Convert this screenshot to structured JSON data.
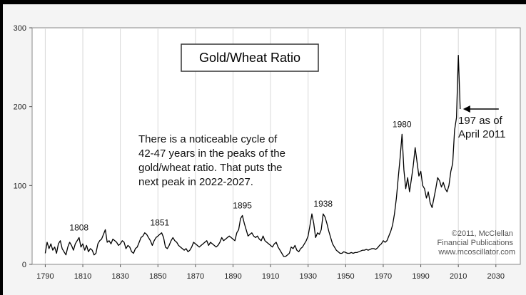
{
  "chart_data": {
    "type": "line",
    "title": "Gold/Wheat Ratio",
    "xlim": [
      1783,
      2043
    ],
    "ylim": [
      0,
      300
    ],
    "x_ticks": [
      1790,
      1810,
      1830,
      1850,
      1870,
      1890,
      1910,
      1930,
      1950,
      1970,
      1990,
      2010,
      2030
    ],
    "y_ticks": [
      0,
      100,
      200,
      300
    ],
    "grid": "vertical",
    "series": [
      {
        "color": "#000000",
        "points": [
          [
            1790,
            14
          ],
          [
            1791,
            28
          ],
          [
            1792,
            20
          ],
          [
            1793,
            26
          ],
          [
            1794,
            18
          ],
          [
            1795,
            22
          ],
          [
            1796,
            14
          ],
          [
            1797,
            26
          ],
          [
            1798,
            30
          ],
          [
            1799,
            20
          ],
          [
            1800,
            16
          ],
          [
            1801,
            12
          ],
          [
            1802,
            22
          ],
          [
            1803,
            28
          ],
          [
            1804,
            24
          ],
          [
            1805,
            18
          ],
          [
            1806,
            26
          ],
          [
            1807,
            30
          ],
          [
            1808,
            34
          ],
          [
            1809,
            22
          ],
          [
            1810,
            26
          ],
          [
            1811,
            18
          ],
          [
            1812,
            24
          ],
          [
            1813,
            16
          ],
          [
            1814,
            20
          ],
          [
            1815,
            18
          ],
          [
            1816,
            12
          ],
          [
            1817,
            14
          ],
          [
            1818,
            26
          ],
          [
            1819,
            30
          ],
          [
            1820,
            32
          ],
          [
            1821,
            38
          ],
          [
            1822,
            44
          ],
          [
            1823,
            28
          ],
          [
            1824,
            30
          ],
          [
            1825,
            26
          ],
          [
            1826,
            32
          ],
          [
            1827,
            30
          ],
          [
            1828,
            28
          ],
          [
            1829,
            24
          ],
          [
            1830,
            26
          ],
          [
            1831,
            30
          ],
          [
            1832,
            28
          ],
          [
            1833,
            20
          ],
          [
            1834,
            24
          ],
          [
            1835,
            22
          ],
          [
            1836,
            16
          ],
          [
            1837,
            14
          ],
          [
            1838,
            20
          ],
          [
            1839,
            22
          ],
          [
            1840,
            28
          ],
          [
            1841,
            34
          ],
          [
            1842,
            36
          ],
          [
            1843,
            40
          ],
          [
            1844,
            38
          ],
          [
            1845,
            34
          ],
          [
            1846,
            30
          ],
          [
            1847,
            24
          ],
          [
            1848,
            30
          ],
          [
            1849,
            34
          ],
          [
            1850,
            36
          ],
          [
            1851,
            38
          ],
          [
            1852,
            40
          ],
          [
            1853,
            34
          ],
          [
            1854,
            22
          ],
          [
            1855,
            20
          ],
          [
            1856,
            24
          ],
          [
            1857,
            30
          ],
          [
            1858,
            34
          ],
          [
            1859,
            30
          ],
          [
            1860,
            28
          ],
          [
            1861,
            24
          ],
          [
            1862,
            22
          ],
          [
            1863,
            20
          ],
          [
            1864,
            18
          ],
          [
            1865,
            20
          ],
          [
            1866,
            16
          ],
          [
            1867,
            18
          ],
          [
            1868,
            22
          ],
          [
            1869,
            28
          ],
          [
            1870,
            26
          ],
          [
            1871,
            24
          ],
          [
            1872,
            22
          ],
          [
            1873,
            24
          ],
          [
            1874,
            26
          ],
          [
            1875,
            28
          ],
          [
            1876,
            30
          ],
          [
            1877,
            24
          ],
          [
            1878,
            28
          ],
          [
            1879,
            26
          ],
          [
            1880,
            24
          ],
          [
            1881,
            22
          ],
          [
            1882,
            24
          ],
          [
            1883,
            28
          ],
          [
            1884,
            34
          ],
          [
            1885,
            30
          ],
          [
            1886,
            32
          ],
          [
            1887,
            34
          ],
          [
            1888,
            36
          ],
          [
            1889,
            34
          ],
          [
            1890,
            32
          ],
          [
            1891,
            30
          ],
          [
            1892,
            40
          ],
          [
            1893,
            44
          ],
          [
            1894,
            58
          ],
          [
            1895,
            62
          ],
          [
            1896,
            52
          ],
          [
            1897,
            44
          ],
          [
            1898,
            36
          ],
          [
            1899,
            38
          ],
          [
            1900,
            40
          ],
          [
            1901,
            36
          ],
          [
            1902,
            34
          ],
          [
            1903,
            36
          ],
          [
            1904,
            32
          ],
          [
            1905,
            30
          ],
          [
            1906,
            36
          ],
          [
            1907,
            30
          ],
          [
            1908,
            28
          ],
          [
            1909,
            26
          ],
          [
            1910,
            24
          ],
          [
            1911,
            22
          ],
          [
            1912,
            26
          ],
          [
            1913,
            28
          ],
          [
            1914,
            22
          ],
          [
            1915,
            18
          ],
          [
            1916,
            14
          ],
          [
            1917,
            10
          ],
          [
            1918,
            10
          ],
          [
            1919,
            12
          ],
          [
            1920,
            14
          ],
          [
            1921,
            22
          ],
          [
            1922,
            20
          ],
          [
            1923,
            24
          ],
          [
            1924,
            18
          ],
          [
            1925,
            16
          ],
          [
            1926,
            20
          ],
          [
            1927,
            22
          ],
          [
            1928,
            26
          ],
          [
            1929,
            30
          ],
          [
            1930,
            36
          ],
          [
            1931,
            50
          ],
          [
            1932,
            64
          ],
          [
            1933,
            52
          ],
          [
            1934,
            34
          ],
          [
            1935,
            40
          ],
          [
            1936,
            38
          ],
          [
            1937,
            44
          ],
          [
            1938,
            64
          ],
          [
            1939,
            60
          ],
          [
            1940,
            52
          ],
          [
            1941,
            42
          ],
          [
            1942,
            34
          ],
          [
            1943,
            26
          ],
          [
            1944,
            22
          ],
          [
            1945,
            18
          ],
          [
            1946,
            16
          ],
          [
            1947,
            14
          ],
          [
            1948,
            14
          ],
          [
            1949,
            16
          ],
          [
            1950,
            15
          ],
          [
            1951,
            14
          ],
          [
            1952,
            14
          ],
          [
            1953,
            15
          ],
          [
            1954,
            14
          ],
          [
            1955,
            15
          ],
          [
            1956,
            15
          ],
          [
            1957,
            16
          ],
          [
            1958,
            17
          ],
          [
            1959,
            18
          ],
          [
            1960,
            18
          ],
          [
            1961,
            19
          ],
          [
            1962,
            18
          ],
          [
            1963,
            19
          ],
          [
            1964,
            20
          ],
          [
            1965,
            20
          ],
          [
            1966,
            19
          ],
          [
            1967,
            21
          ],
          [
            1968,
            24
          ],
          [
            1969,
            26
          ],
          [
            1970,
            30
          ],
          [
            1971,
            28
          ],
          [
            1972,
            30
          ],
          [
            1973,
            36
          ],
          [
            1974,
            42
          ],
          [
            1975,
            50
          ],
          [
            1976,
            64
          ],
          [
            1977,
            84
          ],
          [
            1978,
            110
          ],
          [
            1979,
            135
          ],
          [
            1980,
            165
          ],
          [
            1981,
            120
          ],
          [
            1982,
            96
          ],
          [
            1983,
            110
          ],
          [
            1984,
            92
          ],
          [
            1985,
            108
          ],
          [
            1986,
            125
          ],
          [
            1987,
            148
          ],
          [
            1988,
            130
          ],
          [
            1989,
            112
          ],
          [
            1990,
            118
          ],
          [
            1991,
            100
          ],
          [
            1992,
            96
          ],
          [
            1993,
            84
          ],
          [
            1994,
            92
          ],
          [
            1995,
            78
          ],
          [
            1996,
            72
          ],
          [
            1997,
            84
          ],
          [
            1998,
            96
          ],
          [
            1999,
            110
          ],
          [
            2000,
            106
          ],
          [
            2001,
            98
          ],
          [
            2002,
            104
          ],
          [
            2003,
            96
          ],
          [
            2004,
            92
          ],
          [
            2005,
            100
          ],
          [
            2006,
            118
          ],
          [
            2007,
            128
          ],
          [
            2008,
            170
          ],
          [
            2009,
            186
          ],
          [
            2010,
            265
          ],
          [
            2011,
            197
          ]
        ]
      }
    ],
    "annotations": [
      {
        "text": "1808",
        "x": 1808,
        "y": 34
      },
      {
        "text": "1851",
        "x": 1851,
        "y": 40
      },
      {
        "text": "1895",
        "x": 1895,
        "y": 62
      },
      {
        "text": "1938",
        "x": 1938,
        "y": 64
      },
      {
        "text": "1980",
        "x": 1980,
        "y": 165
      }
    ],
    "callout": {
      "lines": [
        "197 as of",
        "April 2011"
      ],
      "x": 2011,
      "y": 197
    },
    "note_lines": [
      "There is a noticeable cycle of",
      "42-47 years in the peaks of the",
      "gold/wheat ratio.  That puts the",
      "next peak in 2022-2027."
    ],
    "credit_lines": [
      "©2011, McClellan",
      "Financial Publications",
      "www.mcoscillator.com"
    ]
  }
}
